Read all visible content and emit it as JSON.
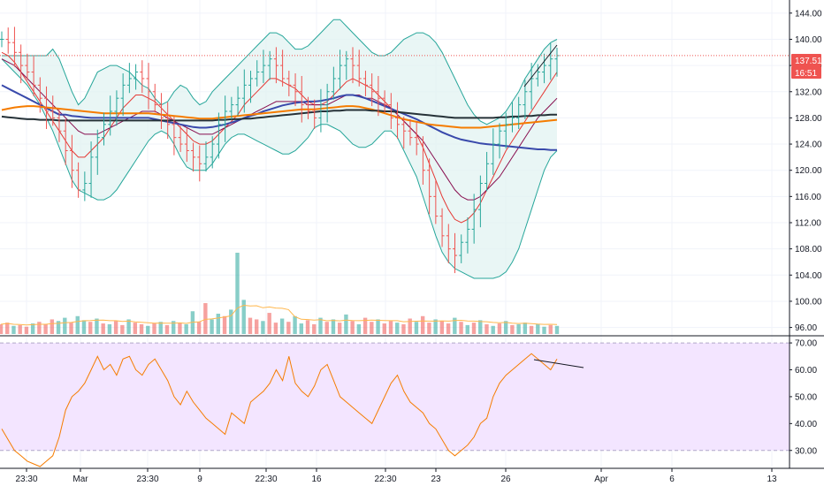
{
  "chart_data": {
    "type": "candlestick",
    "price_axis": {
      "ticks": [
        "144.00",
        "140.00",
        "136.00",
        "132.00",
        "128.00",
        "124.00",
        "120.00",
        "116.00",
        "112.00",
        "108.00",
        "104.00",
        "100.00",
        "96.00"
      ],
      "ylim": [
        95,
        146
      ],
      "last_price_label": "137.51",
      "countdown_label": "16:51",
      "last_price": 137.51
    },
    "time_axis": {
      "ticks": [
        "23:30",
        "Mar",
        "23:30",
        "9",
        "22:30",
        "16",
        "22:30",
        "23",
        "26",
        "Apr",
        "6",
        "13"
      ]
    },
    "rsi_axis": {
      "ticks": [
        "70.00",
        "60.00",
        "50.00",
        "40.00",
        "30.00"
      ],
      "ylim": [
        24,
        72
      ],
      "upper_band": 70,
      "lower_band": 30
    },
    "price_series": [
      140,
      139.5,
      138,
      136,
      135,
      133,
      131,
      129,
      128,
      126,
      123,
      120,
      117,
      118,
      122,
      125,
      127,
      129,
      131,
      133,
      134,
      135,
      134,
      132,
      130,
      128,
      127,
      125,
      124,
      123,
      122,
      121,
      122,
      124,
      127,
      129,
      130,
      131,
      133,
      134,
      135,
      136,
      137,
      136,
      134,
      133,
      132,
      130,
      129,
      128,
      130,
      132,
      134,
      136,
      137,
      136,
      134,
      133,
      132,
      131,
      130,
      128,
      127,
      126,
      125,
      124,
      120,
      116,
      113,
      110,
      108,
      107,
      109,
      111,
      114,
      118,
      121,
      124,
      126,
      127,
      128,
      130,
      132,
      134,
      135,
      136,
      137,
      137.51
    ],
    "ma_series": [
      {
        "color": "#e53935",
        "values": [
          138,
          137.5,
          136.5,
          135,
          133.5,
          132,
          130.5,
          129,
          127.5,
          126,
          124.5,
          123,
          122,
          122,
          123,
          124,
          125,
          126.5,
          128,
          129.5,
          130.5,
          131.5,
          131.5,
          131,
          130.5,
          129.5,
          128.5,
          127.5,
          126.5,
          125.5,
          124.5,
          124,
          124,
          124.5,
          125.5,
          126.5,
          127.5,
          128.5,
          130,
          131,
          132,
          133,
          134,
          134,
          133.5,
          133,
          132.5,
          131.5,
          130.5,
          130,
          130,
          130.5,
          131.5,
          132.5,
          133.5,
          134,
          133.5,
          133,
          132.5,
          131.5,
          130.5,
          129.5,
          128.5,
          127.5,
          126.5,
          125.5,
          123.5,
          121,
          118.5,
          116,
          114,
          112.5,
          112,
          112.5,
          113.5,
          115,
          117,
          119,
          121,
          123,
          124.5,
          126,
          127.5,
          129,
          130.5,
          132,
          133.5,
          135
        ]
      },
      {
        "color": "#880e4f",
        "values": [
          137,
          136.5,
          136,
          135,
          134,
          133,
          132,
          131,
          130,
          129,
          128,
          127,
          126,
          125.5,
          125.5,
          125.5,
          126,
          126.5,
          127,
          127.5,
          128,
          128.5,
          129,
          129,
          129,
          128.5,
          128,
          127.5,
          127,
          126.5,
          126,
          125.5,
          125.5,
          125.5,
          126,
          126.5,
          127,
          127.5,
          128,
          128.5,
          129,
          129.5,
          130,
          130.5,
          130.5,
          130.5,
          130.5,
          130.5,
          130,
          130,
          130,
          130,
          130.5,
          131,
          131.5,
          131.5,
          131.5,
          131,
          131,
          130.5,
          130,
          129.5,
          128.5,
          127.5,
          126.5,
          125.5,
          124.5,
          123,
          121.5,
          120,
          118.5,
          117,
          116,
          115.5,
          115.5,
          116,
          117,
          118,
          119,
          120.5,
          122,
          123.5,
          125,
          126.5,
          128,
          129,
          130,
          131
        ]
      },
      {
        "color": "#3949ab",
        "values": [
          133,
          132.5,
          132,
          131.5,
          131,
          130.5,
          130,
          129.5,
          129,
          128.5,
          128.5,
          128.3,
          128.2,
          128.1,
          128,
          128,
          128,
          128,
          128,
          128,
          128,
          128,
          128,
          128,
          127.8,
          127.6,
          127.4,
          127.2,
          127,
          126.8,
          126.6,
          126.5,
          126.5,
          126.6,
          126.8,
          127,
          127.3,
          127.6,
          128,
          128.3,
          128.6,
          129,
          129.3,
          129.6,
          129.9,
          130.1,
          130.3,
          130.4,
          130.5,
          130.5,
          130.6,
          130.8,
          131,
          131.3,
          131.5,
          131.5,
          131.3,
          131,
          130.6,
          130.2,
          129.8,
          129.4,
          129,
          128.6,
          128.2,
          127.8,
          127.3,
          126.8,
          126.3,
          125.8,
          125.4,
          125,
          124.7,
          124.5,
          124.3,
          124.1,
          124,
          123.9,
          123.8,
          123.7,
          123.6,
          123.5,
          123.4,
          123.3,
          123.2,
          123.2,
          123.1,
          123.1
        ]
      },
      {
        "color": "#f57c00",
        "values": [
          129.2,
          129.4,
          129.6,
          129.7,
          129.8,
          129.8,
          129.7,
          129.6,
          129.5,
          129.4,
          129.3,
          129.2,
          129.1,
          129,
          128.9,
          128.8,
          128.7,
          128.7,
          128.7,
          128.7,
          128.7,
          128.7,
          128.7,
          128.7,
          128.6,
          128.5,
          128.4,
          128.3,
          128.2,
          128.1,
          128,
          127.9,
          127.9,
          127.9,
          128,
          128.1,
          128.2,
          128.3,
          128.4,
          128.5,
          128.6,
          128.7,
          128.8,
          128.9,
          129,
          129.1,
          129.2,
          129.3,
          129.3,
          129.3,
          129.4,
          129.5,
          129.6,
          129.7,
          129.8,
          129.8,
          129.7,
          129.5,
          129.3,
          129,
          128.7,
          128.4,
          128.1,
          127.8,
          127.6,
          127.4,
          127.2,
          127,
          126.9,
          126.8,
          126.7,
          126.6,
          126.5,
          126.5,
          126.5,
          126.5,
          126.6,
          126.7,
          126.8,
          126.9,
          127,
          127.1,
          127.2,
          127.3,
          127.4,
          127.5,
          127.6,
          127.7
        ]
      },
      {
        "color": "#263238",
        "values": [
          128.2,
          128.1,
          128,
          127.9,
          127.8,
          127.8,
          127.7,
          127.7,
          127.7,
          127.6,
          127.6,
          127.6,
          127.6,
          127.6,
          127.6,
          127.6,
          127.6,
          127.6,
          127.6,
          127.6,
          127.6,
          127.6,
          127.6,
          127.6,
          127.6,
          127.6,
          127.6,
          127.6,
          127.6,
          127.6,
          127.6,
          127.6,
          127.6,
          127.6,
          127.7,
          127.7,
          127.8,
          127.8,
          127.9,
          127.9,
          128,
          128.1,
          128.2,
          128.3,
          128.4,
          128.5,
          128.6,
          128.7,
          128.8,
          128.9,
          129,
          129,
          129.1,
          129.1,
          129.2,
          129.2,
          129.2,
          129.2,
          129.1,
          129.1,
          129,
          129,
          128.9,
          128.8,
          128.7,
          128.6,
          128.5,
          128.4,
          128.3,
          128.2,
          128.1,
          128,
          128,
          128,
          128,
          128,
          128,
          128,
          128.1,
          128.1,
          128.2,
          128.2,
          128.3,
          128.3,
          128.4,
          128.4,
          128.5,
          128.5
        ]
      }
    ],
    "bollinger": {
      "upper": [
        137.5,
        137.5,
        137.5,
        137.5,
        137.5,
        137.5,
        137.5,
        137.5,
        138.5,
        137,
        134.5,
        132,
        130,
        131,
        133,
        135,
        135.5,
        136,
        136,
        135.5,
        135,
        134,
        133,
        132.5,
        131,
        130,
        130.5,
        132,
        133,
        132.5,
        131,
        130,
        130.5,
        132,
        133,
        134,
        135,
        136,
        137,
        138,
        139,
        140,
        141,
        141,
        140.5,
        139.5,
        138.5,
        138.5,
        139,
        140,
        141,
        142,
        143,
        143,
        142,
        141,
        140,
        139,
        138,
        137.5,
        137.5,
        138,
        139,
        140,
        140.5,
        141,
        141,
        140.5,
        139.5,
        138,
        136,
        134,
        132,
        130,
        128.5,
        127.5,
        127,
        127.5,
        128,
        129,
        130.5,
        132,
        134,
        135.5,
        137,
        138.5,
        139.5,
        140
      ],
      "lower": [
        137,
        136,
        135,
        134,
        133,
        131.5,
        130,
        128,
        126,
        123.5,
        121,
        118.5,
        117,
        116.5,
        116,
        115.5,
        115.5,
        116,
        117,
        118.5,
        120,
        121.5,
        123,
        124.5,
        125.5,
        126,
        125.5,
        124,
        122,
        120.5,
        120,
        120,
        120,
        121,
        122.5,
        124,
        125,
        125.5,
        125.5,
        125,
        124.5,
        124,
        123.5,
        123,
        122.5,
        122.5,
        123,
        124,
        125,
        126.5,
        127,
        127,
        126.5,
        126,
        125,
        124,
        123.5,
        123.5,
        124,
        125,
        126,
        126,
        125,
        123,
        121,
        119,
        116,
        113,
        110,
        107.5,
        106,
        105,
        104.5,
        104,
        103.5,
        103.5,
        103.5,
        103.5,
        103.8,
        104.5,
        106,
        108,
        111,
        114,
        117,
        120,
        122,
        123
      ]
    },
    "volume_axis": {
      "vmax": 100
    },
    "volume": [
      {
        "v": 12,
        "up": false
      },
      {
        "v": 14,
        "up": false
      },
      {
        "v": 10,
        "up": true
      },
      {
        "v": 11,
        "up": false
      },
      {
        "v": 9,
        "up": false
      },
      {
        "v": 13,
        "up": true
      },
      {
        "v": 15,
        "up": false
      },
      {
        "v": 12,
        "up": false
      },
      {
        "v": 18,
        "up": false
      },
      {
        "v": 16,
        "up": true
      },
      {
        "v": 20,
        "up": true
      },
      {
        "v": 14,
        "up": false
      },
      {
        "v": 22,
        "up": true
      },
      {
        "v": 17,
        "up": true
      },
      {
        "v": 15,
        "up": false
      },
      {
        "v": 19,
        "up": true
      },
      {
        "v": 13,
        "up": false
      },
      {
        "v": 12,
        "up": true
      },
      {
        "v": 16,
        "up": false
      },
      {
        "v": 11,
        "up": false
      },
      {
        "v": 18,
        "up": true
      },
      {
        "v": 14,
        "up": false
      },
      {
        "v": 12,
        "up": false
      },
      {
        "v": 10,
        "up": true
      },
      {
        "v": 13,
        "up": false
      },
      {
        "v": 15,
        "up": true
      },
      {
        "v": 11,
        "up": false
      },
      {
        "v": 16,
        "up": true
      },
      {
        "v": 14,
        "up": false
      },
      {
        "v": 12,
        "up": true
      },
      {
        "v": 28,
        "up": true
      },
      {
        "v": 15,
        "up": false
      },
      {
        "v": 38,
        "up": false
      },
      {
        "v": 18,
        "up": true
      },
      {
        "v": 25,
        "up": true
      },
      {
        "v": 22,
        "up": false
      },
      {
        "v": 30,
        "up": true
      },
      {
        "v": 100,
        "up": true
      },
      {
        "v": 42,
        "up": true
      },
      {
        "v": 20,
        "up": false
      },
      {
        "v": 18,
        "up": false
      },
      {
        "v": 16,
        "up": true
      },
      {
        "v": 26,
        "up": false
      },
      {
        "v": 14,
        "up": false
      },
      {
        "v": 19,
        "up": true
      },
      {
        "v": 15,
        "up": false
      },
      {
        "v": 22,
        "up": true
      },
      {
        "v": 13,
        "up": true
      },
      {
        "v": 17,
        "up": false
      },
      {
        "v": 12,
        "up": false
      },
      {
        "v": 20,
        "up": true
      },
      {
        "v": 15,
        "up": false
      },
      {
        "v": 18,
        "up": true
      },
      {
        "v": 14,
        "up": false
      },
      {
        "v": 24,
        "up": true
      },
      {
        "v": 16,
        "up": false
      },
      {
        "v": 12,
        "up": true
      },
      {
        "v": 20,
        "up": false
      },
      {
        "v": 15,
        "up": false
      },
      {
        "v": 18,
        "up": true
      },
      {
        "v": 13,
        "up": false
      },
      {
        "v": 16,
        "up": false
      },
      {
        "v": 14,
        "up": true
      },
      {
        "v": 12,
        "up": false
      },
      {
        "v": 19,
        "up": false
      },
      {
        "v": 15,
        "up": true
      },
      {
        "v": 22,
        "up": false
      },
      {
        "v": 14,
        "up": false
      },
      {
        "v": 18,
        "up": true
      },
      {
        "v": 16,
        "up": false
      },
      {
        "v": 13,
        "up": false
      },
      {
        "v": 20,
        "up": true
      },
      {
        "v": 15,
        "up": false
      },
      {
        "v": 11,
        "up": true
      },
      {
        "v": 14,
        "up": false
      },
      {
        "v": 17,
        "up": true
      },
      {
        "v": 12,
        "up": false
      },
      {
        "v": 10,
        "up": true
      },
      {
        "v": 13,
        "up": false
      },
      {
        "v": 16,
        "up": true
      },
      {
        "v": 11,
        "up": false
      },
      {
        "v": 12,
        "up": true
      },
      {
        "v": 14,
        "up": true
      },
      {
        "v": 10,
        "up": false
      },
      {
        "v": 12,
        "up": true
      },
      {
        "v": 9,
        "up": true
      },
      {
        "v": 11,
        "up": false
      },
      {
        "v": 10,
        "up": true
      }
    ],
    "rsi": [
      38,
      34,
      30,
      28,
      26,
      25,
      24,
      26,
      28,
      35,
      45,
      50,
      52,
      55,
      60,
      65,
      60,
      62,
      58,
      64,
      65,
      60,
      58,
      62,
      64,
      60,
      56,
      50,
      47,
      52,
      48,
      45,
      42,
      40,
      38,
      36,
      44,
      42,
      40,
      48,
      50,
      52,
      55,
      60,
      56,
      65,
      55,
      52,
      50,
      54,
      60,
      62,
      56,
      50,
      48,
      46,
      44,
      42,
      40,
      45,
      50,
      55,
      58,
      52,
      48,
      46,
      44,
      40,
      38,
      34,
      30,
      28,
      30,
      32,
      35,
      40,
      42,
      50,
      55,
      58,
      60,
      62,
      64,
      66,
      64,
      62,
      60,
      64
    ]
  },
  "colors": {
    "up": "#26a69a",
    "down": "#ef5350",
    "rsi_line": "#f57c00",
    "rsi_band_fill": "#f3e5ff",
    "bb_line": "#26a69a",
    "bb_fill": "#e0f2f1",
    "last_price": "#ef5350"
  }
}
